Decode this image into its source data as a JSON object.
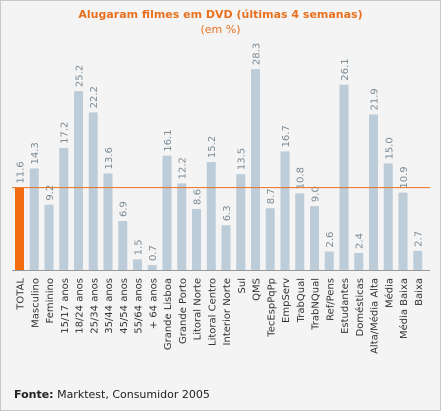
{
  "chart_data": {
    "type": "bar",
    "title": "Alugaram filmes em DVD (últimas 4 semanas)",
    "subtitle": "(em %)",
    "categories": [
      "TOTAL",
      "Masculino",
      "Feminino",
      "15/17 anos",
      "18/24 anos",
      "25/34 anos",
      "35/44 anos",
      "45/54 anos",
      "55/64 anos",
      "+ 64 anos",
      "Grande Lisboa",
      "Grande Porto",
      "Litoral Norte",
      "Litoral Centro",
      "Interior Norte",
      "Sul",
      "QMS",
      "TecEspPqPp",
      "EmpServ",
      "TrabQual",
      "TrabNQual",
      "Ref/Pens",
      "Estudantes",
      "Domésticas",
      "Alta/Média Alta",
      "Média",
      "Média Baixa",
      "Baixa"
    ],
    "values": [
      11.6,
      14.3,
      9.2,
      17.2,
      25.2,
      22.2,
      13.6,
      6.9,
      1.5,
      0.7,
      16.1,
      12.2,
      8.6,
      15.2,
      6.3,
      13.5,
      28.3,
      8.7,
      16.7,
      10.8,
      9.0,
      2.6,
      26.1,
      2.4,
      21.9,
      15.0,
      10.9,
      2.7
    ],
    "value_labels": [
      "11.6",
      "14.3",
      "9.2",
      "17.2",
      "25.2",
      "22.2",
      "13.6",
      "6.9",
      "1.5",
      "0.7",
      "16.1",
      "12.2",
      "8.6",
      "15.2",
      "6.3",
      "13.5",
      "28.3",
      "8.7",
      "16.7",
      "10.8",
      "9.0",
      "2.6",
      "26.1",
      "2.4",
      "21.9",
      "15.0",
      "10.9",
      "2.7"
    ],
    "reference_line": 11.6,
    "ylim": [
      0,
      30
    ],
    "grid": false,
    "colors": {
      "total_bar": "#f36d10",
      "bar": "#bccdd9",
      "reference_line": "#e87020",
      "label": "#7a8a95",
      "axis": "#999999"
    }
  },
  "source": {
    "label": "Fonte:",
    "text": " Marktest, Consumidor 2005"
  }
}
